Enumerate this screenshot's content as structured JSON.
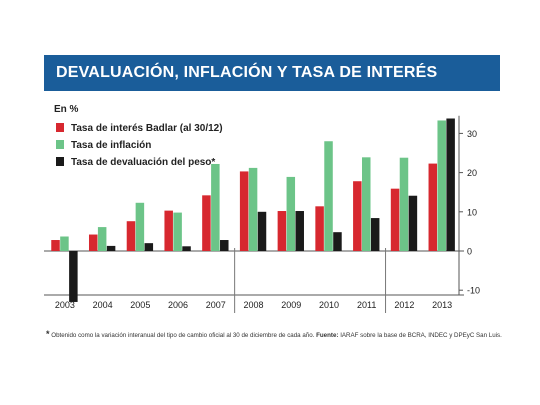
{
  "title": "DEVALUACIÓN, INFLACIÓN Y TASA DE INTERÉS",
  "colors": {
    "banner": "#1a5d9a",
    "red": "#d7282f",
    "green": "#6cc488",
    "black": "#1a1a1a"
  },
  "footnote": {
    "marker": "*",
    "text": "Obtenido como la variación interanual del tipo de cambio oficial al 30 de diciembre de cada año.",
    "source_label": "Fuente:",
    "source_text": "IARAF sobre la base de BCRA, INDEC y DPEyC San Luis."
  },
  "chart_data": {
    "type": "bar",
    "ylabel": "En %",
    "ylim": [
      -13,
      34
    ],
    "yticks": [
      30,
      20,
      10,
      0,
      -10
    ],
    "categories": [
      "2003",
      "2004",
      "2005",
      "2006",
      "2007",
      "2008",
      "2009",
      "2010",
      "2011",
      "2012",
      "2013"
    ],
    "series": [
      {
        "name": "Tasa de interés Badlar (al 30/12)",
        "color": "#d7282f",
        "values": [
          2.8,
          4.2,
          7.6,
          10.3,
          14.2,
          20.3,
          10.2,
          11.4,
          17.8,
          15.9,
          22.3
        ]
      },
      {
        "name": "Tasa de inflación",
        "color": "#6cc488",
        "values": [
          3.7,
          6.1,
          12.3,
          9.8,
          22.2,
          21.2,
          18.9,
          28.0,
          23.9,
          23.8,
          33.3
        ]
      },
      {
        "name": "Tasa de devaluación del peso*",
        "color": "#1a1a1a",
        "values": [
          -13.0,
          1.3,
          2.0,
          1.2,
          2.8,
          10.0,
          10.2,
          4.8,
          8.4,
          14.1,
          33.8
        ]
      }
    ],
    "dividers_after": [
      "2007",
      "2011"
    ],
    "legend_position": "top-left",
    "grid": false
  }
}
